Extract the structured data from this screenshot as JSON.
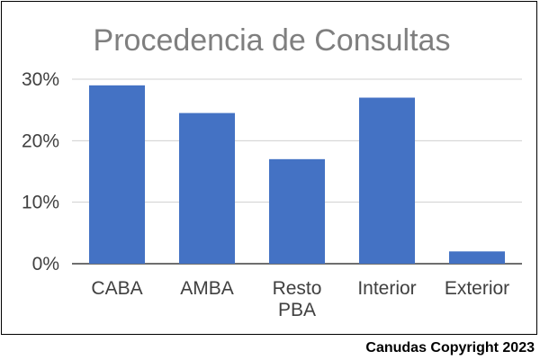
{
  "chart_data": {
    "type": "bar",
    "title": "Procedencia de Consultas",
    "categories": [
      [
        "CABA"
      ],
      [
        "AMBA"
      ],
      [
        "Resto",
        "PBA"
      ],
      [
        "Interior"
      ],
      [
        "Exterior"
      ]
    ],
    "values": [
      29,
      24.5,
      17,
      27,
      2
    ],
    "ylim": [
      0,
      30
    ],
    "yticks": [
      "0%",
      "10%",
      "20%",
      "30%"
    ],
    "ytick_values": [
      0,
      10,
      20,
      30
    ],
    "bar_color": "#4472c4",
    "gridlines": true
  },
  "footer": {
    "copyright": "Canudas Copyright 2023"
  }
}
